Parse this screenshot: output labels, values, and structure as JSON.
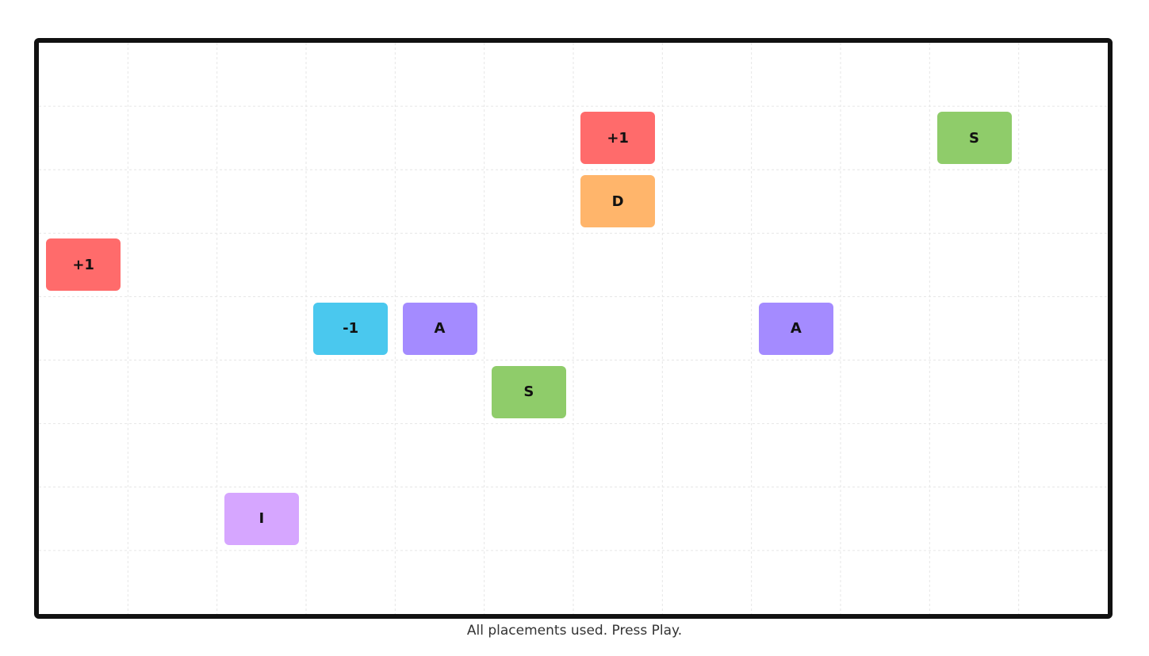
{
  "board": {
    "cols": 12,
    "rows": 9,
    "tiles": [
      {
        "label": "+1",
        "col": 6,
        "row": 1,
        "color": "#ff6b6b"
      },
      {
        "label": "S",
        "col": 10,
        "row": 1,
        "color": "#8fcc6a"
      },
      {
        "label": "D",
        "col": 6,
        "row": 2,
        "color": "#ffb56b"
      },
      {
        "label": "+1",
        "col": 0,
        "row": 3,
        "color": "#ff6b6b"
      },
      {
        "label": "-1",
        "col": 3,
        "row": 4,
        "color": "#4ac8ee"
      },
      {
        "label": "A",
        "col": 4,
        "row": 4,
        "color": "#a48bff"
      },
      {
        "label": "A",
        "col": 8,
        "row": 4,
        "color": "#a48bff"
      },
      {
        "label": "S",
        "col": 5,
        "row": 5,
        "color": "#8fcc6a"
      },
      {
        "label": "I",
        "col": 2,
        "row": 7,
        "color": "#d6a6ff"
      }
    ]
  },
  "status": "All placements used. Press Play."
}
